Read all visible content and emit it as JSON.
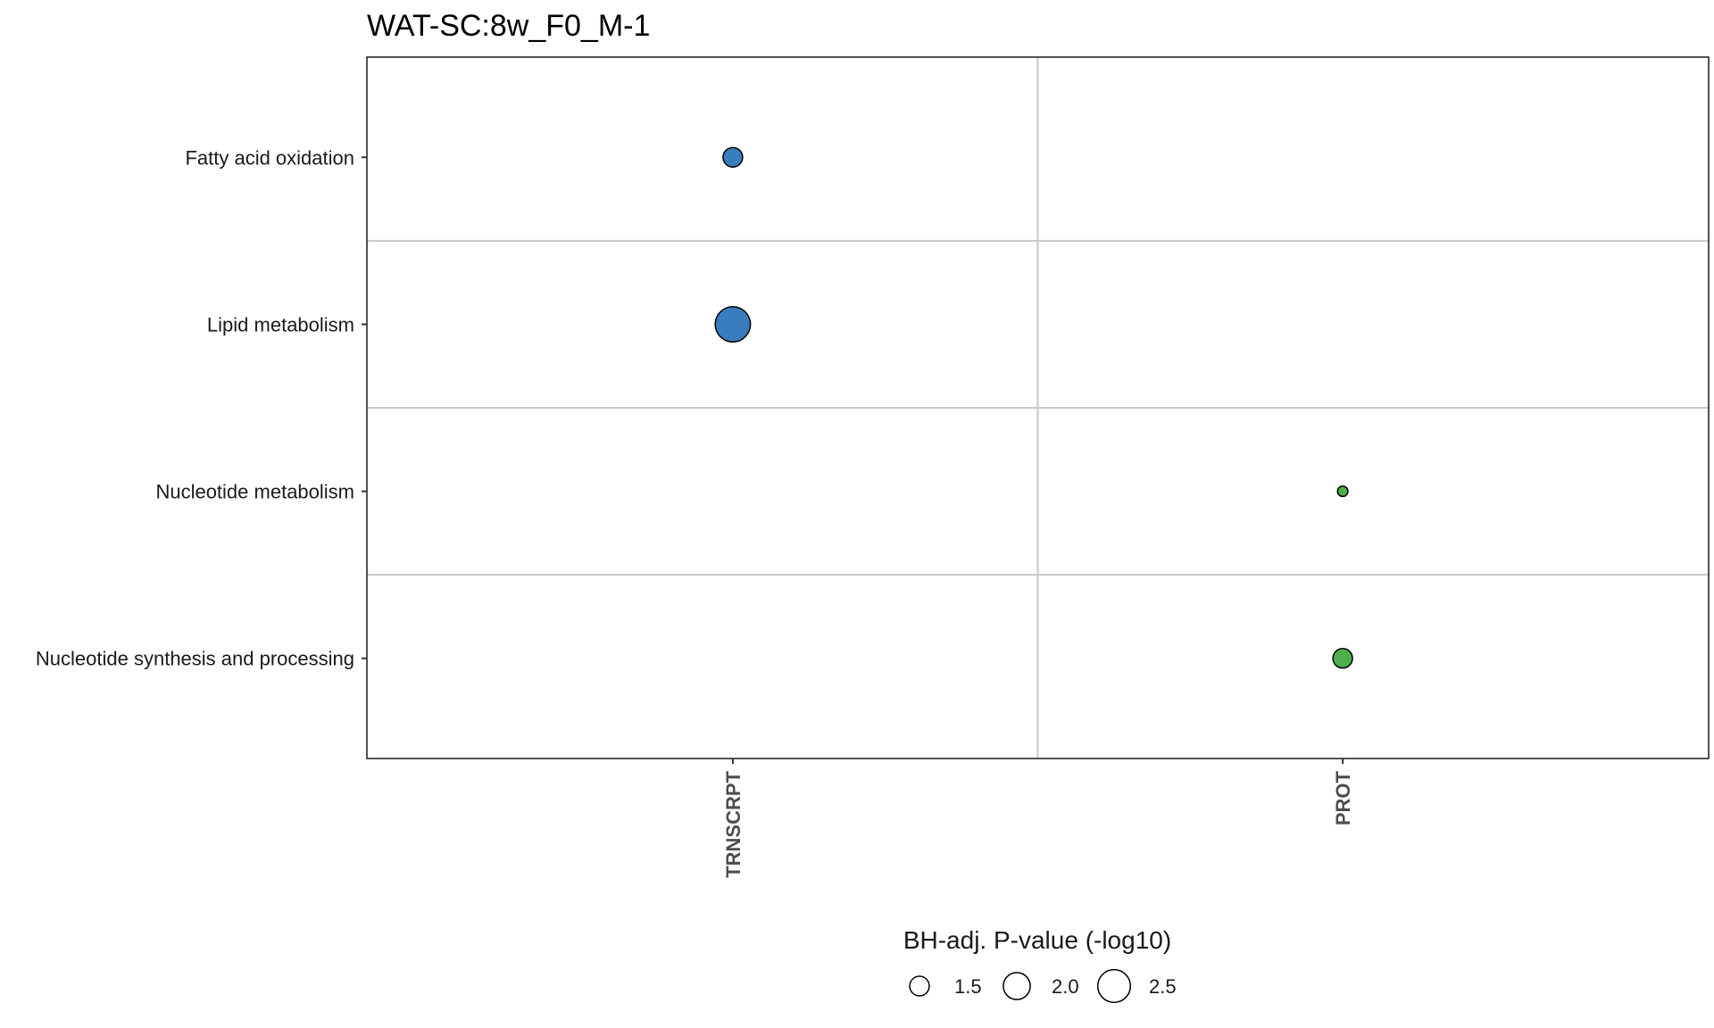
{
  "chart_data": {
    "type": "scatter",
    "title": "WAT-SC:8w_F0_M-1",
    "x_categories": [
      "TRNSCRPT",
      "PROT"
    ],
    "y_categories": [
      "Fatty acid oxidation",
      "Lipid metabolism",
      "Nucleotide metabolism",
      "Nucleotide synthesis and processing"
    ],
    "points": [
      {
        "x": "TRNSCRPT",
        "y": "Fatty acid oxidation",
        "size_value": 1.5,
        "color": "#3a7dbf"
      },
      {
        "x": "TRNSCRPT",
        "y": "Lipid metabolism",
        "size_value": 2.75,
        "color": "#3a7dbf"
      },
      {
        "x": "PROT",
        "y": "Nucleotide metabolism",
        "size_value": 1.1,
        "color": "#4daf4a"
      },
      {
        "x": "PROT",
        "y": "Nucleotide synthesis and processing",
        "size_value": 1.5,
        "color": "#4daf4a"
      }
    ],
    "size_legend": {
      "title": "BH-adj. P-value (-log10)",
      "values": [
        1.5,
        2.0,
        2.5
      ],
      "labels": [
        "1.5",
        "2.0",
        "2.5"
      ]
    },
    "grid": true,
    "legend_position": "bottom"
  }
}
